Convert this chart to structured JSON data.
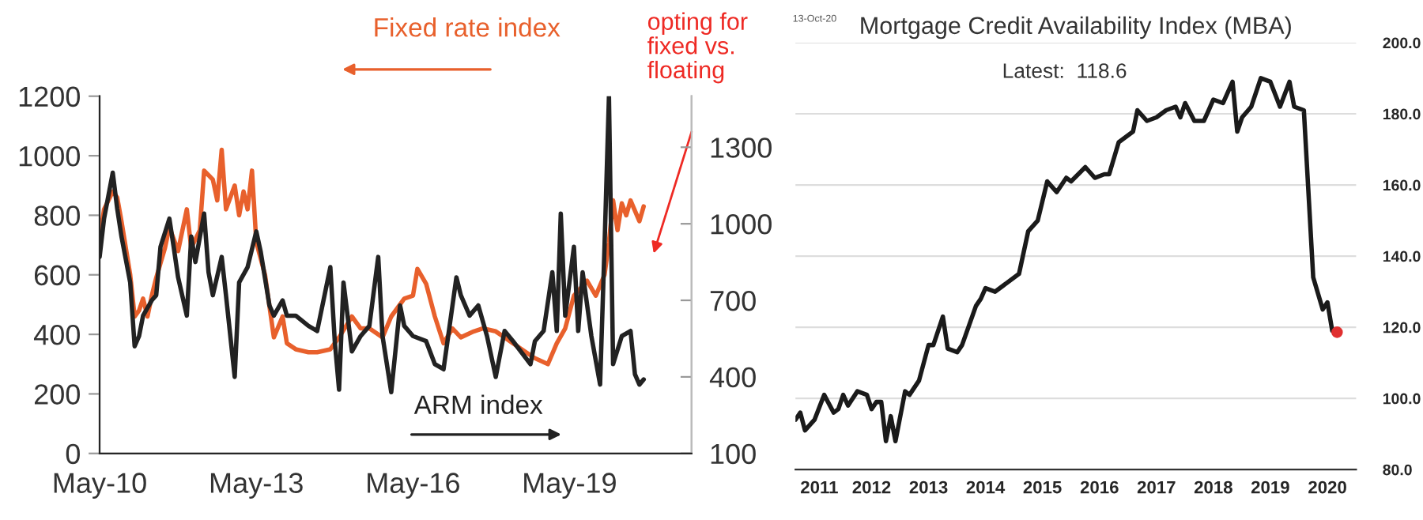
{
  "chart_data": [
    {
      "type": "line",
      "annotations": [
        "Fixed rate index",
        "ARM index",
        "opting for\nfixed vs.\nfloating"
      ],
      "xlim": [
        "2010-05",
        "2021-09"
      ],
      "xticks": [
        {
          "value": "2010-05",
          "label": "May-10"
        },
        {
          "value": "2013-05",
          "label": "May-13"
        },
        {
          "value": "2016-05",
          "label": "May-16"
        },
        {
          "value": "2019-05",
          "label": "May-19"
        }
      ],
      "ylim": [
        0,
        1200
      ],
      "yticks": [
        0,
        200,
        400,
        600,
        800,
        1000,
        1200
      ],
      "y2lim": [
        100,
        1500
      ],
      "y2ticks": [
        100,
        400,
        700,
        1000,
        1300
      ],
      "grid": false,
      "legend": false,
      "series": [
        {
          "color": "#e8602c",
          "x": [
            "2010-05",
            "2010-06",
            "2010-08",
            "2010-09",
            "2010-10",
            "2010-12",
            "2011-01",
            "2011-02",
            "2011-03",
            "2011-04",
            "2011-05",
            "2011-06",
            "2011-08",
            "2011-09",
            "2011-11",
            "2012-01",
            "2012-02",
            "2012-04",
            "2012-05",
            "2012-07",
            "2012-08",
            "2012-09",
            "2012-10",
            "2012-12",
            "2013-01",
            "2013-02",
            "2013-03",
            "2013-04",
            "2013-05",
            "2013-07",
            "2013-09",
            "2013-11",
            "2013-12",
            "2014-02",
            "2014-05",
            "2014-07",
            "2014-10",
            "2014-12",
            "2015-03",
            "2015-05",
            "2015-07",
            "2015-10",
            "2015-12",
            "2016-03",
            "2016-05",
            "2016-06",
            "2016-08",
            "2016-10",
            "2016-12",
            "2017-02",
            "2017-04",
            "2017-07",
            "2017-09",
            "2017-12",
            "2018-02",
            "2018-04",
            "2018-07",
            "2018-09",
            "2018-12",
            "2019-02",
            "2019-04",
            "2019-06",
            "2019-09",
            "2019-11",
            "2020-01",
            "2020-02",
            "2020-03",
            "2020-04",
            "2020-05",
            "2020-06",
            "2020-07",
            "2020-09",
            "2020-10"
          ],
          "values": [
            720,
            820,
            880,
            860,
            780,
            600,
            460,
            480,
            520,
            460,
            530,
            590,
            690,
            760,
            680,
            820,
            690,
            750,
            950,
            920,
            850,
            1020,
            820,
            900,
            800,
            880,
            820,
            950,
            710,
            600,
            390,
            460,
            370,
            350,
            340,
            340,
            350,
            390,
            460,
            420,
            420,
            390,
            460,
            520,
            530,
            620,
            570,
            460,
            370,
            420,
            390,
            410,
            420,
            410,
            390,
            370,
            340,
            320,
            300,
            370,
            420,
            530,
            580,
            530,
            600,
            710,
            850,
            750,
            840,
            800,
            850,
            780,
            830
          ]
        },
        {
          "color": "#222222",
          "axis": "y2",
          "x": [
            "2010-05",
            "2010-06",
            "2010-08",
            "2010-09",
            "2010-10",
            "2010-12",
            "2011-01",
            "2011-02",
            "2011-03",
            "2011-05",
            "2011-06",
            "2011-07",
            "2011-09",
            "2011-10",
            "2011-11",
            "2012-01",
            "2012-02",
            "2012-03",
            "2012-05",
            "2012-06",
            "2012-07",
            "2012-09",
            "2012-10",
            "2012-12",
            "2013-01",
            "2013-03",
            "2013-05",
            "2013-06",
            "2013-08",
            "2013-09",
            "2013-11",
            "2013-12",
            "2014-02",
            "2014-05",
            "2014-07",
            "2014-10",
            "2014-11",
            "2014-12",
            "2015-01",
            "2015-03",
            "2015-05",
            "2015-07",
            "2015-09",
            "2015-10",
            "2015-12",
            "2016-02",
            "2016-03",
            "2016-05",
            "2016-08",
            "2016-10",
            "2016-12",
            "2017-03",
            "2017-04",
            "2017-06",
            "2017-08",
            "2017-10",
            "2017-12",
            "2018-02",
            "2018-04",
            "2018-08",
            "2018-09",
            "2018-11",
            "2019-01",
            "2019-02",
            "2019-03",
            "2019-04",
            "2019-06",
            "2019-07",
            "2019-08",
            "2019-10",
            "2019-12",
            "2020-01",
            "2020-02",
            "2020-03",
            "2020-05",
            "2020-07",
            "2020-08",
            "2020-09",
            "2020-10"
          ],
          "values": [
            870,
            1020,
            1200,
            1060,
            950,
            770,
            520,
            560,
            640,
            700,
            720,
            910,
            1020,
            910,
            790,
            640,
            950,
            850,
            1040,
            810,
            720,
            870,
            720,
            400,
            770,
            830,
            970,
            890,
            680,
            640,
            700,
            640,
            640,
            600,
            580,
            830,
            540,
            350,
            770,
            500,
            560,
            600,
            870,
            560,
            340,
            680,
            600,
            560,
            540,
            450,
            430,
            790,
            720,
            640,
            680,
            560,
            400,
            580,
            540,
            450,
            540,
            580,
            810,
            580,
            1040,
            640,
            910,
            580,
            810,
            560,
            370,
            910,
            1500,
            450,
            560,
            580,
            410,
            370,
            390
          ]
        }
      ]
    },
    {
      "type": "line",
      "title": "Mortgage Credit Availability Index (MBA)",
      "annotations": [
        "13-Oct-20",
        "Latest:  118.6"
      ],
      "xlim": [
        "2011-03",
        "2021-01"
      ],
      "xticks": [
        {
          "value": "2011-08",
          "label": "2011"
        },
        {
          "value": "2012-07",
          "label": "2012"
        },
        {
          "value": "2013-07",
          "label": "2013"
        },
        {
          "value": "2014-07",
          "label": "2014"
        },
        {
          "value": "2015-07",
          "label": "2015"
        },
        {
          "value": "2016-07",
          "label": "2016"
        },
        {
          "value": "2017-07",
          "label": "2017"
        },
        {
          "value": "2018-07",
          "label": "2018"
        },
        {
          "value": "2019-07",
          "label": "2019"
        },
        {
          "value": "2020-07",
          "label": "2020"
        }
      ],
      "ylim": [
        80,
        200
      ],
      "yticks": [
        {
          "value": 80,
          "label": "80.0"
        },
        {
          "value": 100,
          "label": "100.0"
        },
        {
          "value": 120,
          "label": "120.0"
        },
        {
          "value": 140,
          "label": "140.0"
        },
        {
          "value": 160,
          "label": "160.0"
        },
        {
          "value": 180,
          "label": "180.0"
        },
        {
          "value": 200,
          "label": "200.0"
        }
      ],
      "grid": "y",
      "legend": false,
      "series": [
        {
          "color": "#1a1a1a",
          "x": [
            "2011-03",
            "2011-04",
            "2011-05",
            "2011-07",
            "2011-09",
            "2011-11",
            "2011-12",
            "2012-01",
            "2012-02",
            "2012-04",
            "2012-06",
            "2012-07",
            "2012-08",
            "2012-09",
            "2012-10",
            "2012-11",
            "2012-12",
            "2013-02",
            "2013-03",
            "2013-05",
            "2013-07",
            "2013-08",
            "2013-10",
            "2013-11",
            "2014-01",
            "2014-02",
            "2014-05",
            "2014-06",
            "2014-07",
            "2014-09",
            "2014-11",
            "2015-02",
            "2015-04",
            "2015-06",
            "2015-08",
            "2015-10",
            "2015-12",
            "2016-01",
            "2016-04",
            "2016-06",
            "2016-08",
            "2016-09",
            "2016-11",
            "2017-02",
            "2017-03",
            "2017-05",
            "2017-07",
            "2017-09",
            "2017-11",
            "2017-12",
            "2018-01",
            "2018-03",
            "2018-05",
            "2018-06",
            "2018-07",
            "2018-09",
            "2018-11",
            "2018-12",
            "2019-01",
            "2019-03",
            "2019-05",
            "2019-07",
            "2019-09",
            "2019-11",
            "2019-12",
            "2020-02",
            "2020-04",
            "2020-06",
            "2020-07",
            "2020-08",
            "2020-09"
          ],
          "values": [
            94,
            96,
            91,
            94,
            101,
            96,
            97,
            101,
            98,
            102,
            101,
            97,
            99,
            99,
            88,
            95,
            88,
            102,
            101,
            105,
            115,
            115,
            123,
            114,
            113,
            115,
            126,
            128,
            131,
            130,
            132,
            135,
            147,
            150,
            161,
            158,
            162,
            161,
            165,
            162,
            163,
            163,
            172,
            175,
            181,
            178,
            179,
            181,
            182,
            179,
            183,
            178,
            178,
            181,
            184,
            183,
            189,
            175,
            179,
            182,
            190,
            189,
            182,
            189,
            182,
            181,
            134,
            125,
            127,
            119,
            118.6
          ]
        },
        {
          "type": "scatter",
          "color": "#e03030",
          "marker": "circle",
          "x": [
            "2020-09"
          ],
          "values": [
            118.6
          ]
        }
      ]
    }
  ]
}
